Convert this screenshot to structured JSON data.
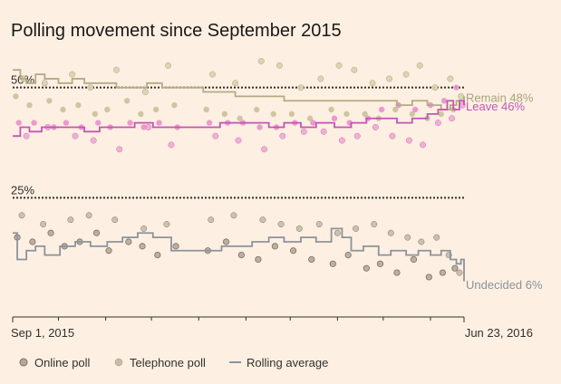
{
  "chart_data": {
    "type": "scatter",
    "title": "Polling movement since September 2015",
    "x_range": [
      "2015-09-01",
      "2016-06-23"
    ],
    "x_tick_labels": [
      "Sep 1, 2015",
      "Jun 23, 2016"
    ],
    "y_range": [
      0,
      60
    ],
    "reference_lines": [
      {
        "value": 50,
        "label": "50%"
      },
      {
        "value": 25,
        "label": "25%"
      }
    ],
    "legend": {
      "placement": "bottom-left",
      "items": [
        {
          "label": "Online poll",
          "marker": "dot-filled"
        },
        {
          "label": "Telephone poll",
          "marker": "dot-outline"
        },
        {
          "label": "Rolling average",
          "marker": "line"
        }
      ]
    },
    "colors": {
      "remain": "#bab28d",
      "leave": "#e27cbe",
      "leave_line": "#c454b4",
      "undecided": "#9b9c9f",
      "undecided_line": "#8d929b",
      "ref_line": "#33302e",
      "online_undecided": "#b5a89a",
      "telephone_undecided": "#c9bba6",
      "online_outline": "#7a6f63"
    },
    "series": [
      {
        "name": "Remain",
        "end_label": "Remain 48%",
        "color": "#a8a37d",
        "online": [
          [
            "2015-09-03",
            48
          ],
          [
            "2015-09-12",
            46
          ],
          [
            "2015-09-25",
            47
          ],
          [
            "2015-10-04",
            45
          ],
          [
            "2015-10-14",
            46
          ],
          [
            "2015-10-25",
            44
          ],
          [
            "2015-11-02",
            45
          ],
          [
            "2015-11-15",
            47
          ],
          [
            "2015-11-24",
            44
          ],
          [
            "2015-12-04",
            45
          ],
          [
            "2015-12-16",
            46
          ],
          [
            "2016-01-06",
            45
          ],
          [
            "2016-01-18",
            44
          ],
          [
            "2016-01-28",
            43
          ],
          [
            "2016-02-08",
            45
          ],
          [
            "2016-02-19",
            44
          ],
          [
            "2016-03-02",
            44
          ],
          [
            "2016-03-14",
            43
          ],
          [
            "2016-03-28",
            45
          ],
          [
            "2016-04-07",
            44
          ],
          [
            "2016-04-19",
            44
          ],
          [
            "2016-04-28",
            43
          ],
          [
            "2016-05-09",
            45
          ],
          [
            "2016-05-20",
            44
          ],
          [
            "2016-05-30",
            43
          ],
          [
            "2016-06-08",
            44
          ],
          [
            "2016-06-16",
            45
          ]
        ],
        "telephone": [
          [
            "2015-09-08",
            52
          ],
          [
            "2015-09-22",
            51
          ],
          [
            "2015-10-10",
            53
          ],
          [
            "2015-10-22",
            50
          ],
          [
            "2015-11-08",
            54
          ],
          [
            "2015-11-27",
            49
          ],
          [
            "2015-12-12",
            55
          ],
          [
            "2016-01-10",
            53
          ],
          [
            "2016-01-25",
            51
          ],
          [
            "2016-02-11",
            56
          ],
          [
            "2016-02-23",
            55
          ],
          [
            "2016-03-08",
            50
          ],
          [
            "2016-03-21",
            52
          ],
          [
            "2016-04-02",
            55
          ],
          [
            "2016-04-12",
            54
          ],
          [
            "2016-04-24",
            51
          ],
          [
            "2016-05-05",
            52
          ],
          [
            "2016-05-16",
            53
          ],
          [
            "2016-05-25",
            55
          ],
          [
            "2016-06-04",
            50
          ],
          [
            "2016-06-14",
            52
          ],
          [
            "2016-06-21",
            48
          ]
        ],
        "rolling": [
          [
            "2015-09-01",
            54
          ],
          [
            "2015-09-06",
            52
          ],
          [
            "2015-09-10",
            51
          ],
          [
            "2015-09-16",
            53
          ],
          [
            "2015-09-22",
            52
          ],
          [
            "2015-10-01",
            51
          ],
          [
            "2015-10-10",
            52
          ],
          [
            "2015-10-18",
            51
          ],
          [
            "2015-10-28",
            51
          ],
          [
            "2015-11-08",
            50
          ],
          [
            "2015-11-18",
            50
          ],
          [
            "2015-11-28",
            51
          ],
          [
            "2015-12-08",
            50
          ],
          [
            "2015-12-18",
            50
          ],
          [
            "2016-01-04",
            49
          ],
          [
            "2016-01-15",
            49
          ],
          [
            "2016-01-25",
            48
          ],
          [
            "2016-02-04",
            48
          ],
          [
            "2016-02-16",
            48
          ],
          [
            "2016-02-26",
            47
          ],
          [
            "2016-03-08",
            47
          ],
          [
            "2016-03-18",
            47
          ],
          [
            "2016-03-30",
            47
          ],
          [
            "2016-04-10",
            47
          ],
          [
            "2016-04-20",
            47
          ],
          [
            "2016-04-30",
            47
          ],
          [
            "2016-05-10",
            46
          ],
          [
            "2016-05-20",
            47
          ],
          [
            "2016-05-30",
            46
          ],
          [
            "2016-06-08",
            45
          ],
          [
            "2016-06-14",
            46
          ],
          [
            "2016-06-18",
            47
          ],
          [
            "2016-06-23",
            48
          ]
        ]
      },
      {
        "name": "Leave",
        "end_label": "Leave 46%",
        "color": "#d65aa8",
        "online": [
          [
            "2015-09-05",
            42
          ],
          [
            "2015-09-15",
            42
          ],
          [
            "2015-09-28",
            41
          ],
          [
            "2015-10-06",
            42
          ],
          [
            "2015-10-16",
            41
          ],
          [
            "2015-10-27",
            42
          ],
          [
            "2015-11-04",
            41
          ],
          [
            "2015-11-17",
            42
          ],
          [
            "2015-11-26",
            41
          ],
          [
            "2015-12-06",
            42
          ],
          [
            "2015-12-18",
            41
          ],
          [
            "2016-01-08",
            42
          ],
          [
            "2016-01-20",
            42
          ],
          [
            "2016-01-30",
            42
          ],
          [
            "2016-02-10",
            41
          ],
          [
            "2016-02-21",
            41
          ],
          [
            "2016-03-04",
            42
          ],
          [
            "2016-03-16",
            42
          ],
          [
            "2016-03-30",
            43
          ],
          [
            "2016-04-09",
            42
          ],
          [
            "2016-04-21",
            43
          ],
          [
            "2016-04-30",
            45
          ],
          [
            "2016-05-11",
            46
          ],
          [
            "2016-05-22",
            45
          ],
          [
            "2016-06-01",
            46
          ],
          [
            "2016-06-10",
            47
          ],
          [
            "2016-06-18",
            50
          ]
        ],
        "telephone": [
          [
            "2015-09-10",
            39
          ],
          [
            "2015-09-24",
            41
          ],
          [
            "2015-10-12",
            39
          ],
          [
            "2015-10-24",
            38
          ],
          [
            "2015-11-10",
            36
          ],
          [
            "2015-11-29",
            41
          ],
          [
            "2015-12-14",
            37
          ],
          [
            "2016-01-12",
            39
          ],
          [
            "2016-01-27",
            38
          ],
          [
            "2016-02-13",
            36
          ],
          [
            "2016-02-25",
            39
          ],
          [
            "2016-03-10",
            40
          ],
          [
            "2016-03-23",
            40
          ],
          [
            "2016-04-04",
            38
          ],
          [
            "2016-04-14",
            39
          ],
          [
            "2016-04-26",
            41
          ],
          [
            "2016-05-07",
            39
          ],
          [
            "2016-05-18",
            38
          ],
          [
            "2016-05-27",
            37
          ],
          [
            "2016-06-06",
            42
          ],
          [
            "2016-06-15",
            43
          ],
          [
            "2016-06-22",
            46
          ]
        ],
        "rolling": [
          [
            "2015-09-01",
            39
          ],
          [
            "2015-09-06",
            41
          ],
          [
            "2015-09-12",
            40
          ],
          [
            "2015-09-20",
            41
          ],
          [
            "2015-09-28",
            41
          ],
          [
            "2015-10-08",
            41
          ],
          [
            "2015-10-18",
            40
          ],
          [
            "2015-10-28",
            41
          ],
          [
            "2015-11-08",
            41
          ],
          [
            "2015-11-20",
            42
          ],
          [
            "2015-12-02",
            41
          ],
          [
            "2015-12-14",
            41
          ],
          [
            "2016-01-05",
            41
          ],
          [
            "2016-01-15",
            42
          ],
          [
            "2016-01-25",
            42
          ],
          [
            "2016-02-04",
            42
          ],
          [
            "2016-02-16",
            41
          ],
          [
            "2016-02-26",
            42
          ],
          [
            "2016-03-08",
            41
          ],
          [
            "2016-03-18",
            42
          ],
          [
            "2016-03-30",
            41
          ],
          [
            "2016-04-10",
            42
          ],
          [
            "2016-04-20",
            43
          ],
          [
            "2016-04-30",
            43
          ],
          [
            "2016-05-10",
            42
          ],
          [
            "2016-05-20",
            43
          ],
          [
            "2016-05-30",
            44
          ],
          [
            "2016-06-06",
            45
          ],
          [
            "2016-06-12",
            47
          ],
          [
            "2016-06-16",
            45
          ],
          [
            "2016-06-20",
            47
          ],
          [
            "2016-06-23",
            46
          ]
        ]
      },
      {
        "name": "Undecided",
        "end_label": "Undecided 6%",
        "color": "#9b9c9f",
        "online": [
          [
            "2015-09-04",
            16
          ],
          [
            "2015-09-14",
            15
          ],
          [
            "2015-09-26",
            17
          ],
          [
            "2015-10-05",
            14
          ],
          [
            "2015-10-15",
            15
          ],
          [
            "2015-10-26",
            17
          ],
          [
            "2015-11-03",
            13
          ],
          [
            "2015-11-16",
            15
          ],
          [
            "2015-11-25",
            14
          ],
          [
            "2015-12-05",
            12
          ],
          [
            "2015-12-17",
            14
          ],
          [
            "2016-01-07",
            13
          ],
          [
            "2016-01-19",
            15
          ],
          [
            "2016-01-29",
            12
          ],
          [
            "2016-02-09",
            11
          ],
          [
            "2016-02-20",
            14
          ],
          [
            "2016-03-03",
            13
          ],
          [
            "2016-03-15",
            11
          ],
          [
            "2016-03-29",
            10
          ],
          [
            "2016-04-08",
            12
          ],
          [
            "2016-04-20",
            9
          ],
          [
            "2016-04-29",
            10
          ],
          [
            "2016-05-10",
            8
          ],
          [
            "2016-05-21",
            11
          ],
          [
            "2016-05-31",
            7
          ],
          [
            "2016-06-09",
            8
          ],
          [
            "2016-06-17",
            9
          ]
        ],
        "telephone": [
          [
            "2015-09-07",
            21
          ],
          [
            "2015-09-21",
            19
          ],
          [
            "2015-10-09",
            20
          ],
          [
            "2015-10-21",
            21
          ],
          [
            "2015-11-07",
            20
          ],
          [
            "2015-11-26",
            18
          ],
          [
            "2015-12-11",
            19
          ],
          [
            "2016-01-09",
            20
          ],
          [
            "2016-01-24",
            21
          ],
          [
            "2016-02-12",
            20
          ],
          [
            "2016-02-24",
            19
          ],
          [
            "2016-03-07",
            18
          ],
          [
            "2016-03-20",
            19
          ],
          [
            "2016-04-01",
            17
          ],
          [
            "2016-04-13",
            18
          ],
          [
            "2016-04-25",
            19
          ],
          [
            "2016-05-06",
            17
          ],
          [
            "2016-05-17",
            16
          ],
          [
            "2016-05-26",
            15
          ],
          [
            "2016-06-05",
            16
          ],
          [
            "2016-06-13",
            12
          ],
          [
            "2016-06-20",
            8
          ]
        ],
        "rolling": [
          [
            "2015-09-01",
            17
          ],
          [
            "2015-09-04",
            11
          ],
          [
            "2015-09-10",
            13
          ],
          [
            "2015-09-16",
            14
          ],
          [
            "2015-09-22",
            12
          ],
          [
            "2015-10-02",
            14
          ],
          [
            "2015-10-12",
            15
          ],
          [
            "2015-10-22",
            14
          ],
          [
            "2015-11-02",
            15
          ],
          [
            "2015-11-12",
            16
          ],
          [
            "2015-11-22",
            17
          ],
          [
            "2015-12-02",
            16
          ],
          [
            "2015-12-14",
            13
          ],
          [
            "2016-01-04",
            13
          ],
          [
            "2016-01-16",
            14
          ],
          [
            "2016-01-26",
            14
          ],
          [
            "2016-02-05",
            15
          ],
          [
            "2016-02-16",
            16
          ],
          [
            "2016-02-26",
            15
          ],
          [
            "2016-03-08",
            16
          ],
          [
            "2016-03-18",
            15
          ],
          [
            "2016-03-28",
            18
          ],
          [
            "2016-04-04",
            16
          ],
          [
            "2016-04-10",
            13
          ],
          [
            "2016-04-18",
            14
          ],
          [
            "2016-04-28",
            12
          ],
          [
            "2016-05-06",
            13
          ],
          [
            "2016-05-16",
            12
          ],
          [
            "2016-05-24",
            13
          ],
          [
            "2016-06-01",
            12
          ],
          [
            "2016-06-08",
            13
          ],
          [
            "2016-06-14",
            11
          ],
          [
            "2016-06-18",
            10
          ],
          [
            "2016-06-21",
            11
          ],
          [
            "2016-06-23",
            6
          ]
        ]
      }
    ]
  }
}
